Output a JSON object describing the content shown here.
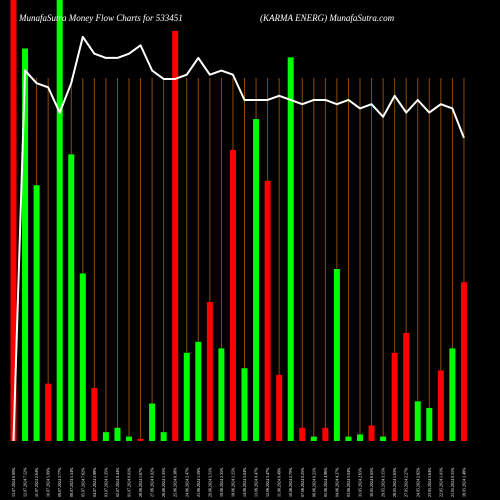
{
  "chart_data": {
    "type": "bar",
    "title_left": "MunafaSutra  Money Flow  Charts for 533451",
    "title_right": "(KARMA ENERG) MunafaSutra.com",
    "colors": {
      "background": "#000000",
      "grid": "#8b4a0a",
      "up": "#00ff00",
      "down": "#ff0000",
      "line": "#ffffff"
    },
    "ylim": [
      0,
      100
    ],
    "grid": "vertical",
    "categories": [
      "13.07.2024 0.00%",
      "12.07.2024 7.12%",
      "11.07.2024 2.64%",
      "10.07.2024 5.09%",
      "09.07.2024 3.77%",
      "08.07.2024 5.54%",
      "05.07.2024 7.62%",
      "04.07.2024 2.98%",
      "03.07.2024 1.35%",
      "02.07.2024 0.44%",
      "01.07.2024 0.01%",
      "28.06.2024 1.67%",
      "27.06.2024 0.02%",
      "26.06.2024 1.35%",
      "25.06.2024 6.38%",
      "24.06.2024 2.47%",
      "21.06.2024 1.59%",
      "20.06.2024 3.51%",
      "19.06.2024 2.35%",
      "18.06.2024 1.15%",
      "14.06.2024 5.04%",
      "13.06.2024 0.47%",
      "12.06.2024 3.47%",
      "11.06.2024 0.49%",
      "10.06.2024 2.70%",
      "07.06.2024 0.25%",
      "06.06.2024 0.21%",
      "05.06.2024 4.96%",
      "04.06.2024 4.37%",
      "03.06.2024 3.04%",
      "31.05.2024 2.65%",
      "30.05.2024 6.05%",
      "29.05.2024 3.15%",
      "28.05.2024 1.63%",
      "27.05.2024 2.27%",
      "24.05.2024 2.82%",
      "23.05.2024 3.64%",
      "22.05.2024 1.01%",
      "21.05.2024 0.31%",
      "18.05.2024 1.48%"
    ],
    "direction": [
      "down",
      "up",
      "up",
      "down",
      "up",
      "up",
      "up",
      "down",
      "up",
      "up",
      "up",
      "down",
      "up",
      "up",
      "down",
      "up",
      "up",
      "down",
      "up",
      "down",
      "up",
      "up",
      "down",
      "down",
      "up",
      "down",
      "up",
      "down",
      "up",
      "up",
      "up",
      "down",
      "up",
      "down",
      "down",
      "up",
      "up",
      "down",
      "up",
      "down"
    ],
    "values": [
      100,
      89,
      58,
      13,
      100,
      65,
      38,
      12,
      2,
      3,
      1,
      0.5,
      8.5,
      2,
      93,
      20,
      22.5,
      31.5,
      21,
      66,
      16.5,
      73,
      59,
      15,
      87,
      3,
      1,
      3,
      39,
      1,
      1.5,
      3.5,
      1,
      20,
      24.5,
      9,
      7.5,
      16,
      21,
      36
    ],
    "line": [
      0,
      88,
      85,
      84,
      78,
      85,
      96,
      92,
      91,
      91,
      92,
      94,
      88,
      86,
      86,
      87,
      91,
      87,
      88,
      87,
      81,
      81,
      81,
      82,
      81,
      80,
      81,
      81,
      80,
      81,
      79,
      80,
      77,
      82,
      78,
      81,
      78,
      80,
      79,
      72
    ]
  }
}
